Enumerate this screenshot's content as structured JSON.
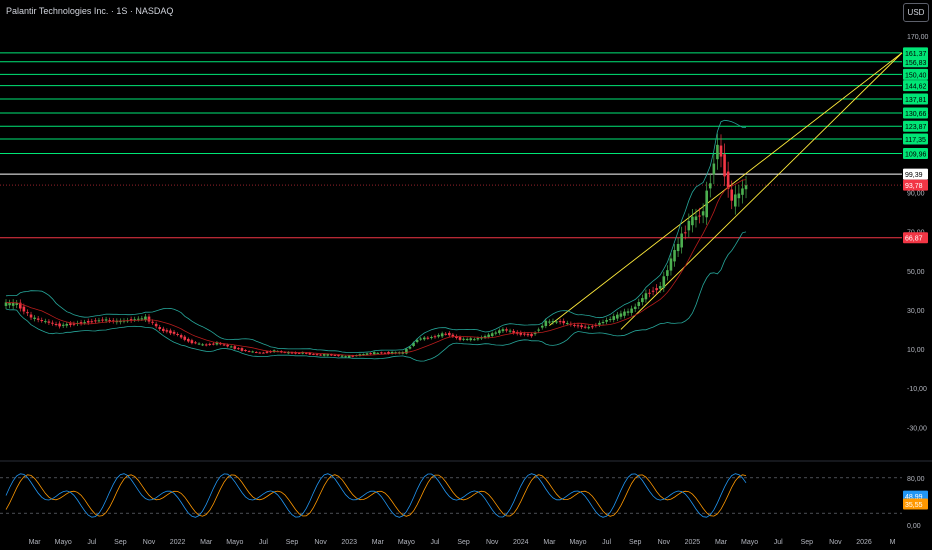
{
  "header": {
    "symbol_title": "Palantir Technologies Inc. · 1S · NASDAQ",
    "currency_label": "USD"
  },
  "colors": {
    "up": "#26a69a",
    "up_candle": "#4caf50",
    "down_candle": "#f23645",
    "level_green": "#00e676",
    "level_white": "#ffffff",
    "level_red": "#f23645",
    "trendline": "#ffeb3b",
    "bollinger": "#26a69a",
    "stoch_k": "#2196f3",
    "stoch_d": "#ff9800"
  },
  "price_axis": {
    "ticks": [
      "170,00",
      "130,00",
      "90,00",
      "70,00",
      "50,00",
      "30,00",
      "10,00",
      "-10,00",
      "-30,00"
    ],
    "tick_values": [
      170,
      130,
      90,
      70,
      50,
      30,
      10,
      -10,
      -30
    ]
  },
  "levels": [
    {
      "label": "161,37",
      "value": 161.37,
      "kind": "green"
    },
    {
      "label": "156,83",
      "value": 156.83,
      "kind": "green"
    },
    {
      "label": "150,40",
      "value": 150.4,
      "kind": "green"
    },
    {
      "label": "144,62",
      "value": 144.62,
      "kind": "green"
    },
    {
      "label": "137,81",
      "value": 137.81,
      "kind": "green"
    },
    {
      "label": "130,66",
      "value": 130.66,
      "kind": "green"
    },
    {
      "label": "123,87",
      "value": 123.87,
      "kind": "green"
    },
    {
      "label": "117,35",
      "value": 117.35,
      "kind": "green"
    },
    {
      "label": "109,96",
      "value": 109.96,
      "kind": "green"
    },
    {
      "label": "99,39",
      "value": 99.39,
      "kind": "white"
    },
    {
      "label": "66,87",
      "value": 66.87,
      "kind": "red"
    }
  ],
  "last_price": {
    "label": "93,78",
    "value": 93.78
  },
  "oscillator_axis": {
    "ticks": [
      "80,00",
      "0,00"
    ],
    "tick_values": [
      80,
      0
    ],
    "k_label": "48,99",
    "k_value": 48.99,
    "d_label": "35,55",
    "d_value": 35.55
  },
  "time_axis": {
    "labels": [
      "Mar",
      "Mayo",
      "Jul",
      "Sep",
      "Nov",
      "2022",
      "Mar",
      "Mayo",
      "Jul",
      "Sep",
      "Nov",
      "2023",
      "Mar",
      "Mayo",
      "Jul",
      "Sep",
      "Nov",
      "2024",
      "Mar",
      "Mayo",
      "Jul",
      "Sep",
      "Nov",
      "2025",
      "Mar",
      "Mayo",
      "Jul",
      "Sep",
      "Nov",
      "2026",
      "M"
    ]
  },
  "chart_data": {
    "type": "candlestick",
    "price_series": {
      "name": "",
      "x": [
        "2021-01",
        "2021-02",
        "2021-03",
        "2021-04",
        "2021-05",
        "2021-06",
        "2021-07",
        "2021-08",
        "2021-09",
        "2021-10",
        "2021-11",
        "2021-12",
        "2022-01",
        "2022-02",
        "2022-03",
        "2022-04",
        "2022-05",
        "2022-06",
        "2022-07",
        "2022-08",
        "2022-09",
        "2022-10",
        "2022-11",
        "2022-12",
        "2023-01",
        "2023-02",
        "2023-03",
        "2023-04",
        "2023-05",
        "2023-06",
        "2023-07",
        "2023-08",
        "2023-09",
        "2023-10",
        "2023-11",
        "2023-12",
        "2024-01",
        "2024-02",
        "2024-03",
        "2024-04",
        "2024-05",
        "2024-06",
        "2024-07",
        "2024-08",
        "2024-09",
        "2024-10",
        "2024-11",
        "2024-12",
        "2025-01",
        "2025-02",
        "2025-03",
        "2025-04"
      ],
      "close": [
        33,
        26,
        24,
        22,
        23,
        24,
        25,
        24,
        25,
        26,
        20,
        18,
        14,
        12,
        13,
        11,
        9,
        8,
        9,
        8,
        8,
        7,
        7,
        6,
        7,
        8,
        8,
        8,
        15,
        16,
        18,
        15,
        15,
        17,
        20,
        18,
        17,
        24,
        24,
        22,
        21,
        24,
        27,
        30,
        38,
        42,
        60,
        75,
        80,
        115,
        85,
        93.78
      ]
    },
    "trend_channel": {
      "upper": {
        "from": [
          "2024-03",
          22
        ],
        "to": [
          "2025-03",
          98
        ]
      },
      "lower": {
        "from": [
          "2024-08",
          20
        ],
        "to": [
          "2025-04",
          85
        ]
      },
      "projection_target": 161.37
    },
    "stochastic": {
      "k_last": 48.99,
      "d_last": 35.55,
      "levels": [
        80,
        20
      ]
    }
  }
}
